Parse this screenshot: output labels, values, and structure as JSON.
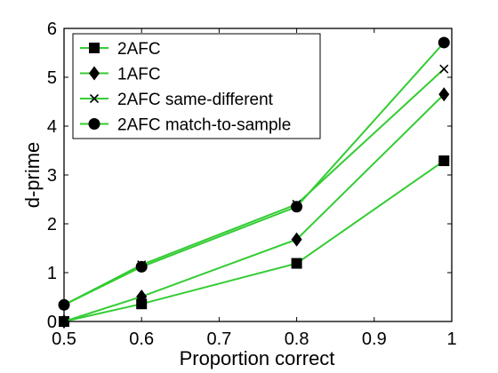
{
  "chart_data": {
    "type": "line",
    "xlabel": "Proportion correct",
    "ylabel": "d-prime",
    "xlim": [
      0.5,
      1
    ],
    "ylim": [
      0,
      6
    ],
    "xticks": [
      "0.5",
      "0.6",
      "0.7",
      "0.8",
      "0.9",
      "1"
    ],
    "yticks": [
      "0",
      "1",
      "2",
      "3",
      "4",
      "5",
      "6"
    ],
    "x": [
      0.5,
      0.6,
      0.8,
      0.99
    ],
    "line_color": "#33cc33",
    "marker_color": "#000000",
    "legend_position": "top-left",
    "grid": false,
    "series": [
      {
        "name": "2AFC",
        "marker": "square",
        "values": [
          0.0,
          0.36,
          1.19,
          3.29
        ]
      },
      {
        "name": "1AFC",
        "marker": "diamond",
        "values": [
          0.0,
          0.51,
          1.68,
          4.65
        ]
      },
      {
        "name": "2AFC same-different",
        "marker": "x",
        "values": [
          0.34,
          1.16,
          2.4,
          5.17
        ]
      },
      {
        "name": "2AFC match-to-sample",
        "marker": "circle",
        "values": [
          0.34,
          1.12,
          2.35,
          5.71
        ]
      }
    ]
  }
}
